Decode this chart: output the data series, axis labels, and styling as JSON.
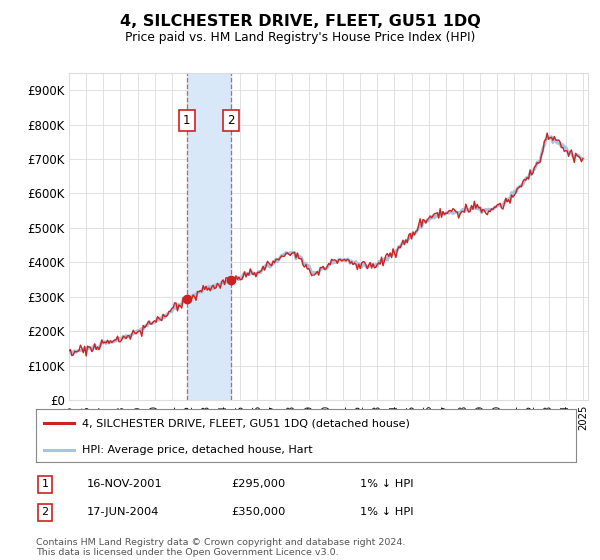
{
  "title": "4, SILCHESTER DRIVE, FLEET, GU51 1DQ",
  "subtitle": "Price paid vs. HM Land Registry's House Price Index (HPI)",
  "ylim": [
    0,
    950000
  ],
  "yticks": [
    0,
    100000,
    200000,
    300000,
    400000,
    500000,
    600000,
    700000,
    800000,
    900000
  ],
  "ytick_labels": [
    "£0",
    "£100K",
    "£200K",
    "£300K",
    "£400K",
    "£500K",
    "£600K",
    "£700K",
    "£800K",
    "£900K"
  ],
  "hpi_color": "#a8c4e0",
  "price_color": "#cc2222",
  "transaction1_date": 2001.88,
  "transaction1_price": 295000,
  "transaction2_date": 2004.46,
  "transaction2_price": 350000,
  "shade_color": "#d8e8f8",
  "vline_color": "#cc2222",
  "legend_label1": "4, SILCHESTER DRIVE, FLEET, GU51 1DQ (detached house)",
  "legend_label2": "HPI: Average price, detached house, Hart",
  "table_entry1_num": "1",
  "table_entry1_date": "16-NOV-2001",
  "table_entry1_price": "£295,000",
  "table_entry1_hpi": "1% ↓ HPI",
  "table_entry2_num": "2",
  "table_entry2_date": "17-JUN-2004",
  "table_entry2_price": "£350,000",
  "table_entry2_hpi": "1% ↓ HPI",
  "footer": "Contains HM Land Registry data © Crown copyright and database right 2024.\nThis data is licensed under the Open Government Licence v3.0.",
  "background_color": "#ffffff",
  "grid_color": "#dddddd"
}
